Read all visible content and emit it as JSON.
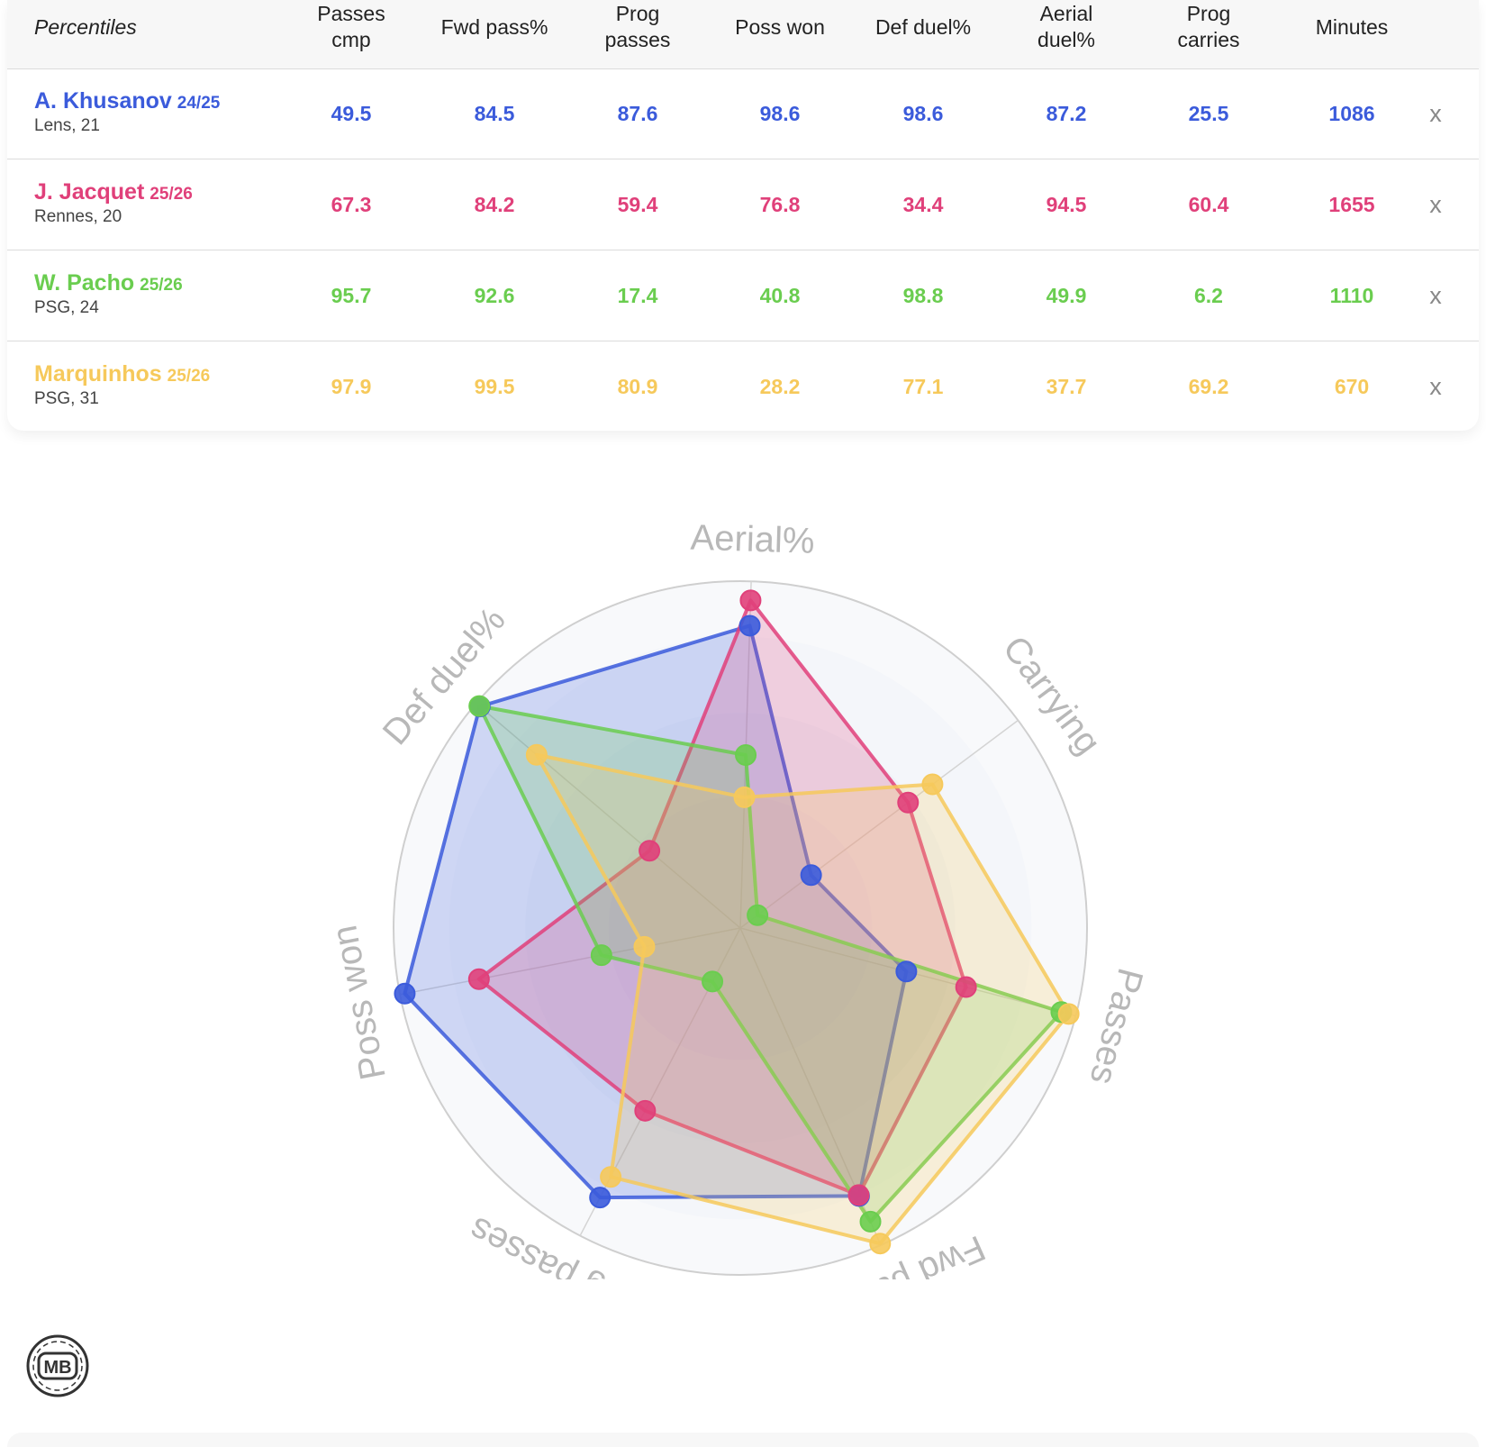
{
  "table": {
    "header_first": "Percentiles",
    "columns": [
      "Passes\ncmp",
      "Fwd pass%",
      "Prog\npasses",
      "Poss won",
      "Def duel%",
      "Aerial\nduel%",
      "Prog\ncarries",
      "Minutes"
    ],
    "remove_label": "x",
    "rows": [
      {
        "name": "A. Khusanov",
        "season": "24/25",
        "club": "Lens, 21",
        "color": "#3b5bdb",
        "values": [
          "49.5",
          "84.5",
          "87.6",
          "98.6",
          "98.6",
          "87.2",
          "25.5",
          "1086"
        ]
      },
      {
        "name": "J. Jacquet",
        "season": "25/26",
        "club": "Rennes, 20",
        "color": "#e0407a",
        "values": [
          "67.3",
          "84.2",
          "59.4",
          "76.8",
          "34.4",
          "94.5",
          "60.4",
          "1655"
        ]
      },
      {
        "name": "W. Pacho",
        "season": "25/26",
        "club": "PSG, 24",
        "color": "#6acd4f",
        "values": [
          "95.7",
          "92.6",
          "17.4",
          "40.8",
          "98.8",
          "49.9",
          "6.2",
          "1110"
        ]
      },
      {
        "name": "Marquinhos",
        "season": "25/26",
        "club": "PSG, 31",
        "color": "#f6c95b",
        "values": [
          "97.9",
          "99.5",
          "80.9",
          "28.2",
          "77.1",
          "37.7",
          "69.2",
          "670"
        ]
      }
    ]
  },
  "chart_data": {
    "type": "radar",
    "axes": [
      "Aerial%",
      "Carrying",
      "Passes",
      "Fwd pass%",
      "Prog passes",
      "Poss won",
      "Def duel%"
    ],
    "range": [
      0,
      100
    ],
    "series": [
      {
        "name": "A. Khusanov",
        "color": "#3b5bdb",
        "values": [
          87.2,
          25.5,
          49.5,
          84.5,
          87.6,
          98.6,
          98.6
        ]
      },
      {
        "name": "J. Jacquet",
        "color": "#e0407a",
        "values": [
          94.5,
          60.4,
          67.3,
          84.2,
          59.4,
          76.8,
          34.4
        ]
      },
      {
        "name": "W. Pacho",
        "color": "#6acd4f",
        "values": [
          49.9,
          6.2,
          95.7,
          92.6,
          17.4,
          40.8,
          98.8
        ]
      },
      {
        "name": "Marquinhos",
        "color": "#f6c95b",
        "values": [
          37.7,
          69.2,
          97.9,
          99.5,
          80.9,
          28.2,
          77.1
        ]
      }
    ]
  },
  "logo_text": "MB"
}
